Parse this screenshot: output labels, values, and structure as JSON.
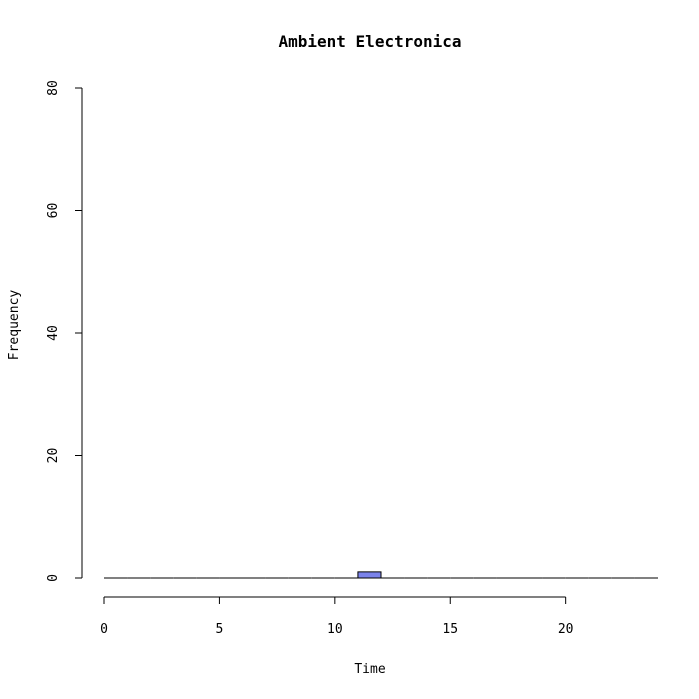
{
  "chart_data": {
    "type": "bar",
    "title": "Ambient Electronica",
    "xlabel": "Time",
    "ylabel": "Frequency",
    "xlim": [
      0,
      24
    ],
    "ylim": [
      0,
      80
    ],
    "x_ticks": [
      0,
      5,
      10,
      15,
      20
    ],
    "y_ticks": [
      0,
      20,
      40,
      60,
      80
    ],
    "bins": [
      {
        "start": 0,
        "end": 1,
        "value": 0
      },
      {
        "start": 1,
        "end": 2,
        "value": 0
      },
      {
        "start": 2,
        "end": 3,
        "value": 0
      },
      {
        "start": 3,
        "end": 4,
        "value": 0
      },
      {
        "start": 4,
        "end": 5,
        "value": 0
      },
      {
        "start": 5,
        "end": 6,
        "value": 0
      },
      {
        "start": 6,
        "end": 7,
        "value": 0
      },
      {
        "start": 7,
        "end": 8,
        "value": 0
      },
      {
        "start": 8,
        "end": 9,
        "value": 0
      },
      {
        "start": 9,
        "end": 10,
        "value": 0
      },
      {
        "start": 10,
        "end": 11,
        "value": 0
      },
      {
        "start": 11,
        "end": 12,
        "value": 1
      },
      {
        "start": 12,
        "end": 13,
        "value": 0
      },
      {
        "start": 13,
        "end": 14,
        "value": 0
      },
      {
        "start": 14,
        "end": 15,
        "value": 0
      },
      {
        "start": 15,
        "end": 16,
        "value": 0
      },
      {
        "start": 16,
        "end": 17,
        "value": 0
      },
      {
        "start": 17,
        "end": 18,
        "value": 0
      },
      {
        "start": 18,
        "end": 19,
        "value": 0
      },
      {
        "start": 19,
        "end": 20,
        "value": 0
      },
      {
        "start": 20,
        "end": 21,
        "value": 0
      },
      {
        "start": 21,
        "end": 22,
        "value": 0
      },
      {
        "start": 22,
        "end": 23,
        "value": 0
      },
      {
        "start": 23,
        "end": 24,
        "value": 0
      }
    ],
    "bar_color": "#7b83eb",
    "grid": false
  }
}
